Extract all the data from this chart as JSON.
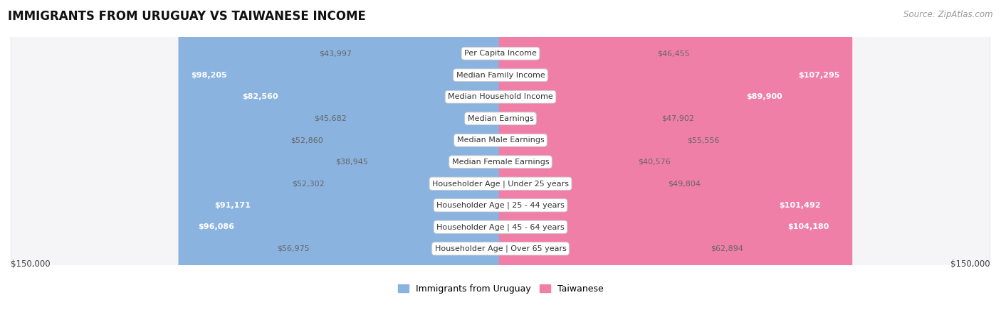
{
  "title": "IMMIGRANTS FROM URUGUAY VS TAIWANESE INCOME",
  "source": "Source: ZipAtlas.com",
  "categories": [
    "Per Capita Income",
    "Median Family Income",
    "Median Household Income",
    "Median Earnings",
    "Median Male Earnings",
    "Median Female Earnings",
    "Householder Age | Under 25 years",
    "Householder Age | 25 - 44 years",
    "Householder Age | 45 - 64 years",
    "Householder Age | Over 65 years"
  ],
  "uruguay_values": [
    43997,
    98205,
    82560,
    45682,
    52860,
    38945,
    52302,
    91171,
    96086,
    56975
  ],
  "taiwanese_values": [
    46455,
    107295,
    89900,
    47902,
    55556,
    40576,
    49804,
    101492,
    104180,
    62894
  ],
  "max_value": 150000,
  "uruguay_color": "#8ab3df",
  "taiwanese_color": "#f07fa8",
  "uruguay_label": "Immigrants from Uruguay",
  "taiwanese_label": "Taiwanese",
  "row_bg_color": "#f5f5f8",
  "row_border_color": "#d8d8e0",
  "value_label_outside_color": "#666666",
  "value_label_inside_color": "#ffffff",
  "inside_threshold": 65000,
  "xlabel_left": "$150,000",
  "xlabel_right": "$150,000",
  "title_fontsize": 12,
  "source_fontsize": 8.5,
  "label_fontsize": 8.5,
  "category_fontsize": 8.0,
  "value_fontsize": 8.0,
  "legend_fontsize": 9
}
